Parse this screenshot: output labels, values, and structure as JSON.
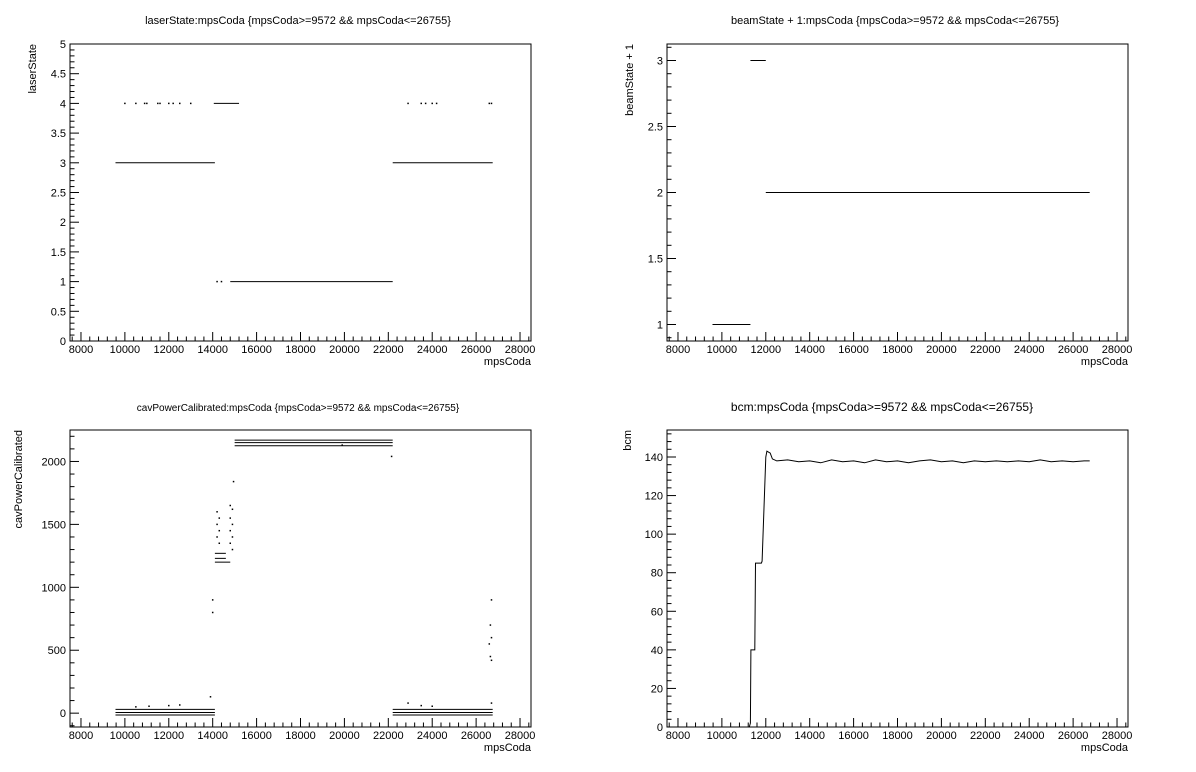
{
  "chart_data": [
    {
      "type": "scatter",
      "title": "laserState:mpsCoda {mpsCoda>=9572 && mpsCoda<=26755}",
      "xlabel": "mpsCoda",
      "ylabel": "laserState",
      "xlim": [
        7500,
        28500
      ],
      "ylim": [
        0,
        5
      ],
      "xticks": [
        8000,
        10000,
        12000,
        14000,
        16000,
        18000,
        20000,
        22000,
        24000,
        26000,
        28000
      ],
      "xtick_labels": [
        "8000",
        "10000",
        "12000",
        "14000",
        "16000",
        "18000",
        "20000",
        "22000",
        "24000",
        "26000",
        "28000"
      ],
      "yticks": [
        0,
        0.5,
        1,
        1.5,
        2,
        2.5,
        3,
        3.5,
        4,
        4.5,
        5
      ],
      "ytick_labels": [
        "0",
        "0.5",
        "1",
        "1.5",
        "2",
        "2.5",
        "3",
        "3.5",
        "4",
        "4.5",
        "5"
      ],
      "segments": [
        {
          "x0": 9572,
          "x1": 14100,
          "y": 3
        },
        {
          "x0": 14050,
          "x1": 15200,
          "y": 4
        },
        {
          "x0": 14800,
          "x1": 22200,
          "y": 1
        },
        {
          "x0": 22200,
          "x1": 26755,
          "y": 3
        }
      ],
      "points": [
        {
          "x": 10000,
          "y": 4
        },
        {
          "x": 10500,
          "y": 4
        },
        {
          "x": 10900,
          "y": 4
        },
        {
          "x": 11000,
          "y": 4
        },
        {
          "x": 11500,
          "y": 4
        },
        {
          "x": 11600,
          "y": 4
        },
        {
          "x": 12000,
          "y": 4
        },
        {
          "x": 12200,
          "y": 4
        },
        {
          "x": 12500,
          "y": 4
        },
        {
          "x": 13000,
          "y": 4
        },
        {
          "x": 14200,
          "y": 1
        },
        {
          "x": 14400,
          "y": 1
        },
        {
          "x": 22900,
          "y": 4
        },
        {
          "x": 23500,
          "y": 4
        },
        {
          "x": 23700,
          "y": 4
        },
        {
          "x": 24000,
          "y": 4
        },
        {
          "x": 24200,
          "y": 4
        },
        {
          "x": 26600,
          "y": 4
        },
        {
          "x": 26700,
          "y": 4
        }
      ]
    },
    {
      "type": "scatter",
      "title": "beamState + 1:mpsCoda {mpsCoda>=9572 && mpsCoda<=26755}",
      "xlabel": "mpsCoda",
      "ylabel": "beamState + 1",
      "xlim": [
        7500,
        28500
      ],
      "ylim": [
        0.875,
        3.125
      ],
      "xticks": [
        8000,
        10000,
        12000,
        14000,
        16000,
        18000,
        20000,
        22000,
        24000,
        26000,
        28000
      ],
      "xtick_labels": [
        "8000",
        "10000",
        "12000",
        "14000",
        "16000",
        "18000",
        "20000",
        "22000",
        "24000",
        "26000",
        "28000"
      ],
      "yticks": [
        1,
        1.5,
        2,
        2.5,
        3
      ],
      "ytick_labels": [
        "1",
        "1.5",
        "2",
        "2.5",
        "3"
      ],
      "segments": [
        {
          "x0": 9572,
          "x1": 11300,
          "y": 1
        },
        {
          "x0": 11300,
          "x1": 12000,
          "y": 3
        },
        {
          "x0": 12000,
          "x1": 26755,
          "y": 2
        }
      ],
      "points": []
    },
    {
      "type": "scatter",
      "title": "cavPowerCalibrated:mpsCoda {mpsCoda>=9572 && mpsCoda<=26755}",
      "xlabel": "mpsCoda",
      "ylabel": "cavPowerCalibrated",
      "xlim": [
        7500,
        28500
      ],
      "ylim": [
        -110,
        2250
      ],
      "xticks": [
        8000,
        10000,
        12000,
        14000,
        16000,
        18000,
        20000,
        22000,
        24000,
        26000,
        28000
      ],
      "xtick_labels": [
        "8000",
        "10000",
        "12000",
        "14000",
        "16000",
        "18000",
        "20000",
        "22000",
        "24000",
        "26000",
        "28000"
      ],
      "yticks": [
        0,
        500,
        1000,
        1500,
        2000
      ],
      "ytick_labels": [
        "0",
        "500",
        "1000",
        "1500",
        "2000"
      ],
      "segments": [
        {
          "x0": 9572,
          "x1": 14100,
          "y": 30
        },
        {
          "x0": 9572,
          "x1": 14100,
          "y": 5
        },
        {
          "x0": 9572,
          "x1": 14100,
          "y": -15
        },
        {
          "x0": 15000,
          "x1": 22200,
          "y": 2170
        },
        {
          "x0": 15000,
          "x1": 22200,
          "y": 2150
        },
        {
          "x0": 15000,
          "x1": 22200,
          "y": 2125
        },
        {
          "x0": 14100,
          "x1": 14600,
          "y": 1270
        },
        {
          "x0": 14100,
          "x1": 14600,
          "y": 1230
        },
        {
          "x0": 14100,
          "x1": 14800,
          "y": 1200
        },
        {
          "x0": 22200,
          "x1": 26755,
          "y": 30
        },
        {
          "x0": 22200,
          "x1": 26755,
          "y": 5
        },
        {
          "x0": 22200,
          "x1": 26755,
          "y": -15
        }
      ],
      "points": [
        {
          "x": 10500,
          "y": 50
        },
        {
          "x": 11100,
          "y": 55
        },
        {
          "x": 12000,
          "y": 60
        },
        {
          "x": 12500,
          "y": 65
        },
        {
          "x": 13900,
          "y": 130
        },
        {
          "x": 14000,
          "y": 900
        },
        {
          "x": 14000,
          "y": 800
        },
        {
          "x": 14200,
          "y": 1600
        },
        {
          "x": 14200,
          "y": 1500
        },
        {
          "x": 14200,
          "y": 1400
        },
        {
          "x": 14300,
          "y": 1550
        },
        {
          "x": 14300,
          "y": 1450
        },
        {
          "x": 14300,
          "y": 1350
        },
        {
          "x": 14800,
          "y": 1650
        },
        {
          "x": 14800,
          "y": 1550
        },
        {
          "x": 14800,
          "y": 1450
        },
        {
          "x": 14800,
          "y": 1350
        },
        {
          "x": 14900,
          "y": 1620
        },
        {
          "x": 14900,
          "y": 1500
        },
        {
          "x": 14900,
          "y": 1400
        },
        {
          "x": 14900,
          "y": 1300
        },
        {
          "x": 14950,
          "y": 1840
        },
        {
          "x": 19900,
          "y": 2130
        },
        {
          "x": 22150,
          "y": 2040
        },
        {
          "x": 22900,
          "y": 80
        },
        {
          "x": 23500,
          "y": 60
        },
        {
          "x": 24000,
          "y": 55
        },
        {
          "x": 26700,
          "y": 900
        },
        {
          "x": 26650,
          "y": 700
        },
        {
          "x": 26700,
          "y": 600
        },
        {
          "x": 26600,
          "y": 550
        },
        {
          "x": 26650,
          "y": 450
        },
        {
          "x": 26700,
          "y": 420
        },
        {
          "x": 26700,
          "y": 80
        }
      ]
    },
    {
      "type": "line",
      "title": "bcm:mpsCoda {mpsCoda>=9572 && mpsCoda<=26755}",
      "xlabel": "mpsCoda",
      "ylabel": "bcm",
      "xlim": [
        7500,
        28500
      ],
      "ylim": [
        0,
        154
      ],
      "xticks": [
        8000,
        10000,
        12000,
        14000,
        16000,
        18000,
        20000,
        22000,
        24000,
        26000,
        28000
      ],
      "xtick_labels": [
        "8000",
        "10000",
        "12000",
        "14000",
        "16000",
        "18000",
        "20000",
        "22000",
        "24000",
        "26000",
        "28000"
      ],
      "yticks": [
        0,
        20,
        40,
        60,
        80,
        100,
        120,
        140
      ],
      "ytick_labels": [
        "0",
        "20",
        "40",
        "60",
        "80",
        "100",
        "120",
        "140"
      ],
      "x": [
        11250,
        11300,
        11320,
        11500,
        11530,
        11800,
        11830,
        12000,
        12050,
        12200,
        12300,
        12500,
        13000,
        13500,
        14000,
        14500,
        15000,
        15500,
        16000,
        16500,
        17000,
        17500,
        18000,
        18500,
        19000,
        19500,
        20000,
        20500,
        21000,
        21500,
        22000,
        22500,
        23000,
        23500,
        24000,
        24500,
        25000,
        25500,
        26000,
        26500,
        26755
      ],
      "y": [
        0,
        2,
        40,
        40,
        85,
        85,
        86,
        140,
        143,
        142,
        139,
        138,
        138.5,
        137.5,
        138,
        137,
        138.5,
        137.5,
        138,
        137,
        138.5,
        137.5,
        138,
        137,
        138,
        138.5,
        137.5,
        138,
        137,
        138,
        137.5,
        138,
        137.5,
        138,
        137.5,
        138.5,
        137.5,
        138,
        137.5,
        138,
        138
      ]
    }
  ]
}
